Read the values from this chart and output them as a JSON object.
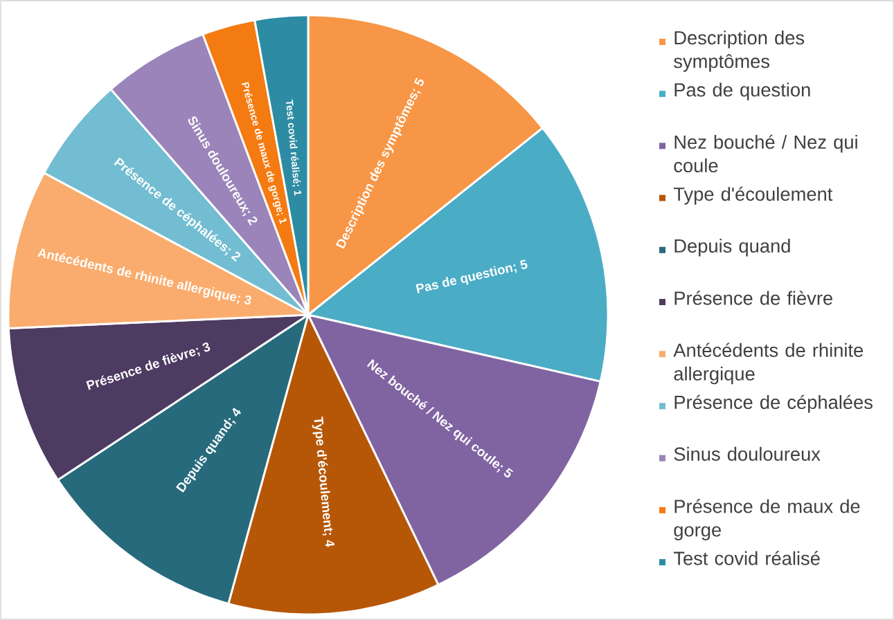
{
  "chart_data": {
    "type": "pie",
    "categories": [
      "Description des symptômes",
      "Pas de question",
      "Nez bouché / Nez qui coule",
      "Type d'écoulement",
      "Depuis quand",
      "Présence de fièvre",
      "Antécédents de rhinite allergique",
      "Présence de céphalées",
      "Sinus douloureux",
      "Présence de maux de gorge",
      "Test covid réalisé"
    ],
    "values": [
      5,
      5,
      5,
      4,
      4,
      3,
      3,
      2,
      2,
      1,
      1
    ],
    "value_labels": [
      "Description des symptômes; 5",
      "Pas de question; 5",
      "Nez bouché / Nez qui coule; 5",
      "Type d'écoulement; 4",
      "Depuis quand; 4",
      "Présence de fièvre; 3",
      "Antécédents de rhinite allergique; 3",
      "Présence de céphalées; 2",
      "Sinus douloureux; 2",
      "Présence de maux de gorge; 1",
      "Test covid réalisé; 1"
    ],
    "colors": [
      "#f79646",
      "#4bacc6",
      "#8064a2",
      "#b65708",
      "#276a7c",
      "#4d3b62",
      "#f9ac6d",
      "#72bdd1",
      "#9b84b9",
      "#f47b12",
      "#2d8ca3"
    ],
    "data_labels": true,
    "legend": "right"
  }
}
